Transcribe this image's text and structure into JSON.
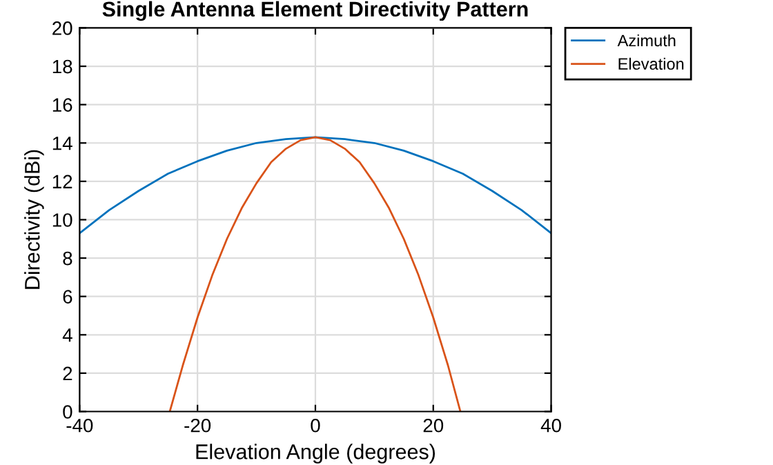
{
  "chart_data": {
    "type": "line",
    "title": "Single Antenna Element Directivity Pattern",
    "xlabel": "Elevation Angle (degrees)",
    "ylabel": "Directivity (dBi)",
    "series": [
      {
        "name": "Azimuth",
        "color": "#0072bd",
        "x": [
          -40,
          -35,
          -30,
          -25,
          -20,
          -15,
          -10,
          -5,
          0,
          5,
          10,
          15,
          20,
          25,
          30,
          35,
          40
        ],
        "values": [
          9.3,
          10.5,
          11.5,
          12.4,
          13.05,
          13.6,
          14.0,
          14.2,
          14.3,
          14.2,
          14.0,
          13.6,
          13.05,
          12.4,
          11.5,
          10.5,
          9.3
        ]
      },
      {
        "name": "Elevation",
        "color": "#d95319",
        "x": [
          -24.7,
          -22.5,
          -20,
          -17.5,
          -15,
          -12.5,
          -10,
          -7.5,
          -5,
          -2.5,
          0,
          2.5,
          5,
          7.5,
          10,
          12.5,
          15,
          17.5,
          20,
          22.5,
          24.6
        ],
        "values": [
          0,
          2.4,
          4.9,
          7.1,
          9.0,
          10.6,
          11.9,
          13.0,
          13.7,
          14.15,
          14.3,
          14.15,
          13.7,
          13.0,
          11.9,
          10.6,
          9.0,
          7.1,
          4.9,
          2.4,
          0
        ]
      }
    ],
    "xlim": [
      -40,
      40
    ],
    "xticks": [
      -40,
      -20,
      0,
      20,
      40
    ],
    "ylim": [
      0,
      20
    ],
    "yticks": [
      0,
      2,
      4,
      6,
      8,
      10,
      12,
      14,
      16,
      18,
      20
    ],
    "grid": true,
    "legend": "top right"
  }
}
